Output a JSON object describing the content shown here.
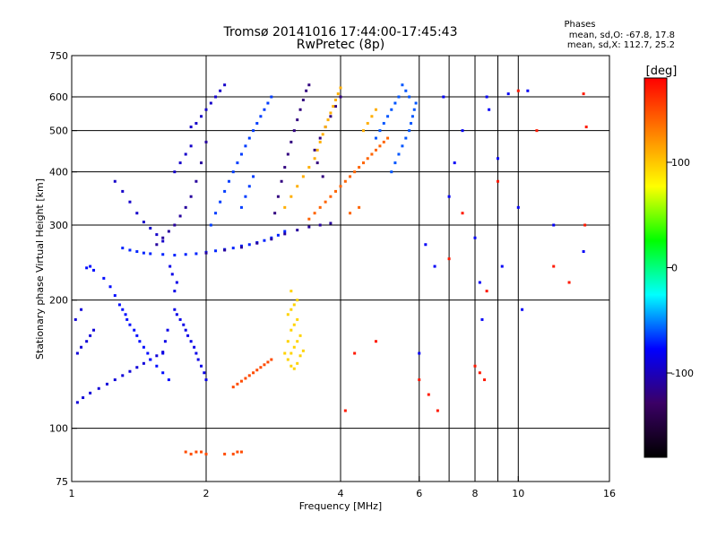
{
  "chart_data": {
    "type": "scatter",
    "title": "Tromsø 20141016 17:44:00-17:45:43",
    "subtitle": "RwPretec (8p)",
    "xlabel": "Frequency [MHz]",
    "ylabel": "Stationary phase Virtual Height [km]",
    "x_scale": "log",
    "y_scale": "log",
    "xlim": [
      1,
      16
    ],
    "ylim": [
      75,
      750
    ],
    "x_ticks": [
      1,
      2,
      4,
      6,
      8,
      10,
      16
    ],
    "x_grid": [
      2,
      4,
      6,
      8,
      10
    ],
    "x_minor": [
      7,
      9
    ],
    "y_ticks": [
      75,
      100,
      200,
      300,
      400,
      500,
      600,
      750
    ],
    "y_grid": [
      100,
      200,
      300,
      400,
      500,
      600
    ],
    "grid": true,
    "stats": {
      "title": "Phases",
      "line1": "mean, sd,O: -67.8, 17.8",
      "line2": "mean, sd,X: 112.7, 25.2"
    },
    "colorbar": {
      "label": "[deg]",
      "range": [
        -180,
        180
      ],
      "ticks": [
        {
          "value": 100,
          "label": "100"
        },
        {
          "value": 0,
          "label": "0"
        },
        {
          "value": -100,
          "label": "-100"
        }
      ],
      "stops": [
        "#000000",
        "#3b0066",
        "#0000ff",
        "#00ffff",
        "#00ff00",
        "#ffff00",
        "#ff8000",
        "#ff0000"
      ]
    },
    "series": [
      {
        "phase": -90,
        "points": [
          [
            1.03,
            115
          ],
          [
            1.06,
            118
          ],
          [
            1.1,
            121
          ],
          [
            1.15,
            124
          ],
          [
            1.2,
            127
          ],
          [
            1.25,
            130
          ],
          [
            1.3,
            133
          ],
          [
            1.35,
            136
          ],
          [
            1.4,
            139
          ],
          [
            1.45,
            142
          ],
          [
            1.5,
            145
          ],
          [
            1.55,
            148
          ],
          [
            1.6,
            151
          ],
          [
            1.03,
            150
          ],
          [
            1.05,
            155
          ],
          [
            1.08,
            160
          ],
          [
            1.1,
            165
          ],
          [
            1.12,
            170
          ],
          [
            1.02,
            180
          ],
          [
            1.05,
            190
          ]
        ]
      },
      {
        "phase": -75,
        "points": [
          [
            1.08,
            238
          ],
          [
            1.1,
            240
          ],
          [
            1.12,
            235
          ],
          [
            1.18,
            225
          ],
          [
            1.22,
            215
          ],
          [
            1.25,
            205
          ],
          [
            1.28,
            195
          ],
          [
            1.3,
            190
          ],
          [
            1.32,
            185
          ],
          [
            1.33,
            180
          ],
          [
            1.35,
            175
          ],
          [
            1.38,
            170
          ],
          [
            1.4,
            165
          ],
          [
            1.42,
            160
          ],
          [
            1.45,
            155
          ],
          [
            1.48,
            150
          ],
          [
            1.5,
            145
          ],
          [
            1.55,
            140
          ],
          [
            1.6,
            135
          ],
          [
            1.65,
            130
          ]
        ]
      },
      {
        "phase": -70,
        "points": [
          [
            1.3,
            265
          ],
          [
            1.35,
            262
          ],
          [
            1.4,
            260
          ],
          [
            1.45,
            258
          ],
          [
            1.5,
            257
          ],
          [
            1.6,
            256
          ],
          [
            1.7,
            255
          ],
          [
            1.8,
            256
          ],
          [
            1.9,
            257
          ],
          [
            2.0,
            259
          ],
          [
            2.1,
            261
          ],
          [
            2.2,
            263
          ],
          [
            2.3,
            265
          ],
          [
            2.4,
            268
          ],
          [
            2.5,
            270
          ],
          [
            2.6,
            273
          ],
          [
            2.7,
            276
          ],
          [
            2.8,
            280
          ],
          [
            2.9,
            284
          ],
          [
            3.0,
            290
          ]
        ]
      },
      {
        "phase": -110,
        "points": [
          [
            2.0,
            258
          ],
          [
            2.2,
            262
          ],
          [
            2.4,
            266
          ],
          [
            2.6,
            272
          ],
          [
            2.8,
            278
          ],
          [
            3.0,
            286
          ],
          [
            3.2,
            292
          ],
          [
            3.4,
            297
          ],
          [
            3.6,
            300
          ],
          [
            3.8,
            303
          ],
          [
            1.55,
            270
          ],
          [
            1.6,
            280
          ],
          [
            1.65,
            290
          ],
          [
            1.7,
            300
          ],
          [
            1.75,
            315
          ],
          [
            1.8,
            330
          ],
          [
            1.85,
            350
          ],
          [
            1.9,
            380
          ],
          [
            1.95,
            420
          ],
          [
            2.0,
            470
          ]
        ]
      },
      {
        "phase": -85,
        "points": [
          [
            1.7,
            190
          ],
          [
            1.72,
            185
          ],
          [
            1.75,
            180
          ],
          [
            1.78,
            175
          ],
          [
            1.8,
            170
          ],
          [
            1.82,
            165
          ],
          [
            1.85,
            160
          ],
          [
            1.88,
            155
          ],
          [
            1.9,
            150
          ],
          [
            1.92,
            145
          ],
          [
            1.95,
            140
          ],
          [
            1.98,
            135
          ],
          [
            2.0,
            130
          ],
          [
            1.7,
            210
          ],
          [
            1.72,
            220
          ],
          [
            1.68,
            230
          ],
          [
            1.66,
            240
          ],
          [
            1.64,
            170
          ],
          [
            1.62,
            160
          ],
          [
            1.6,
            150
          ]
        ]
      },
      {
        "phase": -95,
        "points": [
          [
            1.25,
            380
          ],
          [
            1.3,
            360
          ],
          [
            1.35,
            340
          ],
          [
            1.4,
            320
          ],
          [
            1.45,
            305
          ],
          [
            1.5,
            295
          ],
          [
            1.55,
            285
          ],
          [
            1.6,
            275
          ],
          [
            1.7,
            400
          ],
          [
            1.75,
            420
          ],
          [
            1.8,
            440
          ],
          [
            1.85,
            460
          ],
          [
            1.95,
            540
          ],
          [
            2.0,
            560
          ],
          [
            2.05,
            580
          ],
          [
            2.1,
            600
          ],
          [
            2.15,
            620
          ],
          [
            2.2,
            640
          ],
          [
            1.9,
            520
          ],
          [
            1.85,
            510
          ]
        ]
      },
      {
        "phase": -65,
        "points": [
          [
            2.05,
            300
          ],
          [
            2.1,
            320
          ],
          [
            2.15,
            340
          ],
          [
            2.2,
            360
          ],
          [
            2.25,
            380
          ],
          [
            2.3,
            400
          ],
          [
            2.35,
            420
          ],
          [
            2.4,
            440
          ],
          [
            2.45,
            460
          ],
          [
            2.5,
            480
          ],
          [
            2.55,
            500
          ],
          [
            2.6,
            520
          ],
          [
            2.65,
            540
          ],
          [
            2.7,
            560
          ],
          [
            2.75,
            580
          ],
          [
            2.8,
            600
          ],
          [
            2.4,
            330
          ],
          [
            2.45,
            350
          ],
          [
            2.5,
            370
          ],
          [
            2.55,
            390
          ]
        ]
      },
      {
        "phase": -120,
        "points": [
          [
            2.85,
            320
          ],
          [
            2.9,
            350
          ],
          [
            2.95,
            380
          ],
          [
            3.0,
            410
          ],
          [
            3.05,
            440
          ],
          [
            3.1,
            470
          ],
          [
            3.15,
            500
          ],
          [
            3.2,
            530
          ],
          [
            3.25,
            560
          ],
          [
            3.3,
            590
          ],
          [
            3.35,
            620
          ],
          [
            3.4,
            640
          ],
          [
            3.5,
            450
          ],
          [
            3.6,
            480
          ],
          [
            3.7,
            510
          ],
          [
            3.8,
            540
          ],
          [
            3.9,
            570
          ],
          [
            4.0,
            600
          ],
          [
            3.55,
            420
          ],
          [
            3.65,
            390
          ]
        ]
      },
      {
        "phase": 140,
        "points": [
          [
            3.4,
            310
          ],
          [
            3.5,
            320
          ],
          [
            3.6,
            330
          ],
          [
            3.7,
            340
          ],
          [
            3.8,
            350
          ],
          [
            3.9,
            360
          ],
          [
            4.0,
            370
          ],
          [
            4.1,
            380
          ],
          [
            4.2,
            390
          ],
          [
            4.3,
            400
          ],
          [
            4.4,
            410
          ],
          [
            4.5,
            420
          ],
          [
            4.6,
            430
          ],
          [
            4.7,
            440
          ],
          [
            4.8,
            450
          ],
          [
            4.9,
            460
          ],
          [
            5.0,
            470
          ],
          [
            5.1,
            480
          ],
          [
            4.2,
            320
          ],
          [
            4.4,
            330
          ]
        ]
      },
      {
        "phase": 110,
        "points": [
          [
            3.0,
            330
          ],
          [
            3.1,
            350
          ],
          [
            3.2,
            370
          ],
          [
            3.3,
            390
          ],
          [
            3.4,
            410
          ],
          [
            3.5,
            430
          ],
          [
            3.55,
            450
          ],
          [
            3.6,
            470
          ],
          [
            3.65,
            490
          ],
          [
            3.7,
            510
          ],
          [
            3.75,
            530
          ],
          [
            3.8,
            550
          ],
          [
            3.85,
            570
          ],
          [
            3.9,
            590
          ],
          [
            3.95,
            610
          ],
          [
            4.0,
            630
          ],
          [
            4.5,
            500
          ],
          [
            4.6,
            520
          ],
          [
            4.7,
            540
          ],
          [
            4.8,
            560
          ]
        ]
      },
      {
        "phase": -60,
        "points": [
          [
            5.2,
            400
          ],
          [
            5.3,
            420
          ],
          [
            5.4,
            440
          ],
          [
            5.5,
            460
          ],
          [
            5.6,
            480
          ],
          [
            5.7,
            500
          ],
          [
            5.75,
            520
          ],
          [
            5.8,
            540
          ],
          [
            5.85,
            560
          ],
          [
            5.9,
            580
          ],
          [
            5.7,
            600
          ],
          [
            5.6,
            620
          ],
          [
            5.5,
            640
          ],
          [
            5.4,
            600
          ],
          [
            5.3,
            580
          ],
          [
            5.2,
            560
          ],
          [
            5.1,
            540
          ],
          [
            5.0,
            520
          ],
          [
            4.9,
            500
          ],
          [
            4.8,
            480
          ]
        ]
      },
      {
        "phase": 150,
        "points": [
          [
            2.3,
            125
          ],
          [
            2.35,
            127
          ],
          [
            2.4,
            129
          ],
          [
            2.45,
            131
          ],
          [
            2.5,
            133
          ],
          [
            2.55,
            135
          ],
          [
            2.6,
            137
          ],
          [
            2.65,
            139
          ],
          [
            2.7,
            141
          ],
          [
            2.75,
            143
          ],
          [
            2.8,
            145
          ],
          [
            1.9,
            88
          ],
          [
            1.95,
            88
          ],
          [
            2.0,
            87
          ],
          [
            1.85,
            87
          ],
          [
            1.8,
            88
          ],
          [
            2.3,
            87
          ],
          [
            2.35,
            88
          ],
          [
            2.4,
            88
          ],
          [
            2.2,
            87
          ]
        ]
      },
      {
        "phase": 95,
        "points": [
          [
            3.05,
            145
          ],
          [
            3.1,
            150
          ],
          [
            3.15,
            155
          ],
          [
            3.2,
            160
          ],
          [
            3.25,
            165
          ],
          [
            3.1,
            170
          ],
          [
            3.15,
            175
          ],
          [
            3.2,
            180
          ],
          [
            3.05,
            185
          ],
          [
            3.1,
            190
          ],
          [
            3.15,
            195
          ],
          [
            3.2,
            200
          ],
          [
            3.1,
            140
          ],
          [
            3.15,
            138
          ],
          [
            3.2,
            142
          ],
          [
            3.25,
            148
          ],
          [
            3.3,
            152
          ],
          [
            3.0,
            150
          ],
          [
            3.05,
            160
          ],
          [
            3.1,
            210
          ]
        ]
      },
      {
        "phase": -80,
        "points": [
          [
            6.2,
            270
          ],
          [
            6.5,
            240
          ],
          [
            6.8,
            600
          ],
          [
            7.0,
            350
          ],
          [
            7.2,
            420
          ],
          [
            7.5,
            500
          ],
          [
            8.0,
            280
          ],
          [
            8.2,
            220
          ],
          [
            8.3,
            180
          ],
          [
            8.5,
            600
          ],
          [
            8.6,
            560
          ],
          [
            9.0,
            430
          ],
          [
            9.2,
            240
          ],
          [
            9.5,
            610
          ],
          [
            10.0,
            330
          ],
          [
            10.2,
            190
          ],
          [
            10.5,
            620
          ],
          [
            12.0,
            300
          ],
          [
            14.0,
            260
          ],
          [
            6.0,
            150
          ]
        ]
      },
      {
        "phase": 170,
        "points": [
          [
            6.0,
            130
          ],
          [
            6.3,
            120
          ],
          [
            6.6,
            110
          ],
          [
            7.0,
            250
          ],
          [
            7.5,
            320
          ],
          [
            8.0,
            140
          ],
          [
            8.2,
            135
          ],
          [
            8.4,
            130
          ],
          [
            8.5,
            210
          ],
          [
            9.0,
            380
          ],
          [
            10.0,
            620
          ],
          [
            11.0,
            500
          ],
          [
            12.0,
            240
          ],
          [
            13.0,
            220
          ],
          [
            14.0,
            610
          ],
          [
            14.2,
            510
          ],
          [
            14.1,
            300
          ],
          [
            4.1,
            110
          ],
          [
            4.3,
            150
          ],
          [
            4.8,
            160
          ]
        ]
      }
    ]
  }
}
